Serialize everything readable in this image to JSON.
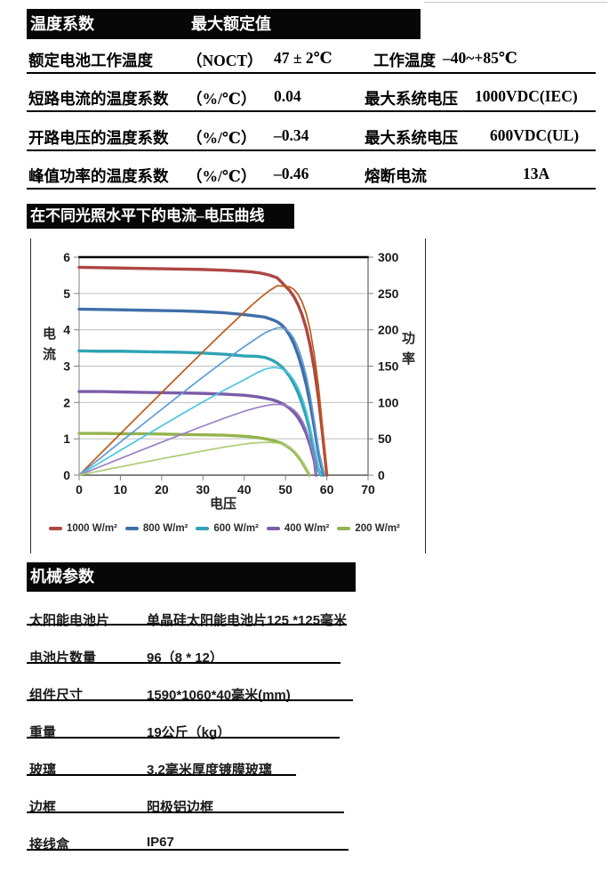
{
  "header_bar": {
    "left": "温度系数",
    "right": "最大额定值"
  },
  "temperature_table": {
    "rows": [
      {
        "label": "额定电池工作温度",
        "unit": "（NOCT）",
        "value": "47 ± 2℃",
        "label2": "工作温度",
        "value2": "–40~+85℃"
      },
      {
        "label": "短路电流的温度系数",
        "unit": "（%/℃）",
        "value": "0.04",
        "label2": "最大系统电压",
        "value2": "1000VDC(IEC)"
      },
      {
        "label": "开路电压的温度系数",
        "unit": "（%/℃）",
        "value": "–0.34",
        "label2": "最大系统电压",
        "value2": "600VDC(UL)"
      },
      {
        "label": "峰值功率的温度系数",
        "unit": "（%/℃）",
        "value": "–0.46",
        "label2": "熔断电流",
        "value2": "13A"
      }
    ]
  },
  "chart_section": {
    "title_bar": "在不同光照水平下的电流–电压曲线"
  },
  "chart_data": {
    "type": "line",
    "title": "在不同光照水平下的电流–电压曲线",
    "xlabel": "电压",
    "ylabel_left": "电流",
    "ylabel_right": "功率",
    "xlim": [
      0,
      70
    ],
    "xticks": [
      0,
      10,
      20,
      30,
      40,
      50,
      60,
      70
    ],
    "ylim_left": [
      0,
      6
    ],
    "yticks_left": [
      0,
      1,
      2,
      3,
      4,
      5,
      6
    ],
    "ylim_right": [
      0,
      300
    ],
    "yticks_right": [
      0,
      50,
      100,
      150,
      200,
      250,
      300
    ],
    "grid": true,
    "legend_position": "bottom",
    "power_mapping": "power curve P = V × I plotted on right axis (right 300 = left 6)",
    "series": [
      {
        "name": "1000 W/m²",
        "iv_color": "#AE4644",
        "power_color": "#BE5B17",
        "isc": 5.72,
        "voc": 60.0,
        "mpp_voltage": 49,
        "mpp_power": 260,
        "iv_points": [
          [
            0,
            5.72
          ],
          [
            5,
            5.71
          ],
          [
            10,
            5.7
          ],
          [
            15,
            5.69
          ],
          [
            20,
            5.68
          ],
          [
            25,
            5.67
          ],
          [
            30,
            5.66
          ],
          [
            35,
            5.64
          ],
          [
            40,
            5.61
          ],
          [
            42,
            5.59
          ],
          [
            44,
            5.56
          ],
          [
            46,
            5.51
          ],
          [
            48,
            5.43
          ],
          [
            50,
            5.2
          ],
          [
            51,
            5.08
          ],
          [
            52,
            4.92
          ],
          [
            53,
            4.7
          ],
          [
            54,
            4.42
          ],
          [
            55,
            4.05
          ],
          [
            56,
            3.55
          ],
          [
            57,
            2.9
          ],
          [
            58,
            2.1
          ],
          [
            59,
            1.1
          ],
          [
            59.6,
            0.45
          ],
          [
            60,
            0
          ]
        ]
      },
      {
        "name": "800 W/m²",
        "iv_color": "#3F6FA8",
        "power_color": "#5B9BD5",
        "isc": 4.57,
        "voc": 59.2,
        "mpp_voltage": 48,
        "mpp_power": 205,
        "iv_points": [
          [
            0,
            4.57
          ],
          [
            5,
            4.56
          ],
          [
            10,
            4.55
          ],
          [
            15,
            4.54
          ],
          [
            20,
            4.53
          ],
          [
            25,
            4.52
          ],
          [
            30,
            4.5
          ],
          [
            35,
            4.47
          ],
          [
            40,
            4.42
          ],
          [
            43,
            4.38
          ],
          [
            45,
            4.35
          ],
          [
            46,
            4.31
          ],
          [
            47,
            4.27
          ],
          [
            48,
            4.22
          ],
          [
            49,
            4.14
          ],
          [
            50,
            4.02
          ],
          [
            51,
            3.85
          ],
          [
            52,
            3.62
          ],
          [
            53,
            3.32
          ],
          [
            54,
            2.95
          ],
          [
            55,
            2.5
          ],
          [
            56,
            1.95
          ],
          [
            57,
            1.3
          ],
          [
            58,
            0.6
          ],
          [
            59.2,
            0
          ]
        ]
      },
      {
        "name": "600 W/m²",
        "iv_color": "#2FA3B5",
        "power_color": "#4EC5DF",
        "isc": 3.42,
        "voc": 58.6,
        "mpp_voltage": 48,
        "mpp_power": 150,
        "iv_points": [
          [
            0,
            3.42
          ],
          [
            5,
            3.41
          ],
          [
            10,
            3.41
          ],
          [
            15,
            3.4
          ],
          [
            20,
            3.39
          ],
          [
            25,
            3.38
          ],
          [
            30,
            3.36
          ],
          [
            35,
            3.33
          ],
          [
            40,
            3.28
          ],
          [
            43,
            3.27
          ],
          [
            45,
            3.24
          ],
          [
            46,
            3.2
          ],
          [
            47,
            3.15
          ],
          [
            48,
            3.08
          ],
          [
            49,
            2.99
          ],
          [
            50,
            2.87
          ],
          [
            51,
            2.72
          ],
          [
            52,
            2.52
          ],
          [
            53,
            2.28
          ],
          [
            54,
            1.98
          ],
          [
            55,
            1.62
          ],
          [
            56,
            1.18
          ],
          [
            57,
            0.66
          ],
          [
            58,
            0.14
          ],
          [
            58.6,
            0
          ]
        ]
      },
      {
        "name": "400 W/m²",
        "iv_color": "#7A5DA8",
        "power_color": "#9B7FC4",
        "isc": 2.3,
        "voc": 57.4,
        "mpp_voltage": 49,
        "mpp_power": 98,
        "iv_points": [
          [
            0,
            2.3
          ],
          [
            5,
            2.3
          ],
          [
            10,
            2.29
          ],
          [
            15,
            2.28
          ],
          [
            20,
            2.27
          ],
          [
            25,
            2.26
          ],
          [
            30,
            2.25
          ],
          [
            35,
            2.23
          ],
          [
            40,
            2.2
          ],
          [
            43,
            2.16
          ],
          [
            45,
            2.12
          ],
          [
            47,
            2.07
          ],
          [
            48,
            2.03
          ],
          [
            49,
            1.98
          ],
          [
            50,
            1.92
          ],
          [
            51,
            1.84
          ],
          [
            52,
            1.73
          ],
          [
            53,
            1.59
          ],
          [
            54,
            1.4
          ],
          [
            55,
            1.15
          ],
          [
            56,
            0.82
          ],
          [
            57,
            0.38
          ],
          [
            57.4,
            0
          ]
        ]
      },
      {
        "name": "200 W/m²",
        "iv_color": "#93B44E",
        "power_color": "#AFCB72",
        "isc": 1.15,
        "voc": 55.8,
        "mpp_voltage": 46,
        "mpp_power": 45,
        "iv_points": [
          [
            0,
            1.15
          ],
          [
            5,
            1.15
          ],
          [
            10,
            1.14
          ],
          [
            15,
            1.14
          ],
          [
            20,
            1.13
          ],
          [
            25,
            1.12
          ],
          [
            30,
            1.11
          ],
          [
            35,
            1.1
          ],
          [
            40,
            1.07
          ],
          [
            42,
            1.05
          ],
          [
            44,
            1.02
          ],
          [
            46,
            0.98
          ],
          [
            47,
            0.95
          ],
          [
            48,
            0.92
          ],
          [
            49,
            0.88
          ],
          [
            50,
            0.82
          ],
          [
            51,
            0.75
          ],
          [
            52,
            0.65
          ],
          [
            53,
            0.52
          ],
          [
            54,
            0.36
          ],
          [
            55,
            0.16
          ],
          [
            55.8,
            0
          ]
        ]
      }
    ]
  },
  "mechanical_section": {
    "title_bar": "机械参数",
    "rows": [
      {
        "label": "太阳能电池片",
        "value": "单晶硅太阳能电池片125 *125毫米"
      },
      {
        "label": "电池片数量",
        "value": "96（8 * 12）"
      },
      {
        "label": "组件尺寸",
        "value": "1590*1060*40毫米(mm)"
      },
      {
        "label": "重量",
        "value": "19公斤（kg）"
      },
      {
        "label": "玻璃",
        "value": "3.2毫米厚度镀膜玻璃"
      },
      {
        "label": "边框",
        "value": "阳极铝边框"
      },
      {
        "label": "接线盒",
        "value": "IP67"
      }
    ]
  }
}
